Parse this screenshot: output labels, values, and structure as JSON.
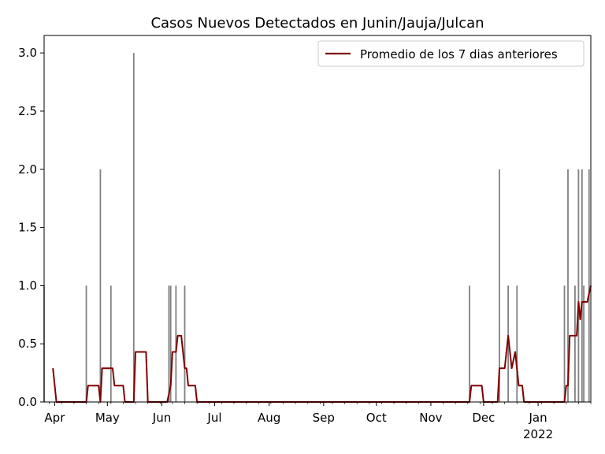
{
  "chart_data": {
    "type": "bar",
    "title": "Casos Nuevos Detectados en Junin/Jauja/Julcan",
    "xlabel": "",
    "ylabel": "",
    "x_range": [
      "2021-03-26",
      "2022-01-31"
    ],
    "ylim": [
      0,
      3.15
    ],
    "y_ticks": [
      0.0,
      0.5,
      1.0,
      1.5,
      2.0,
      2.5,
      3.0
    ],
    "y_tick_labels": [
      "0.0",
      "0.5",
      "1.0",
      "1.5",
      "2.0",
      "2.5",
      "3.0"
    ],
    "x_ticks": [
      {
        "date": "2021-04-01",
        "label": "Apr"
      },
      {
        "date": "2021-05-01",
        "label": "May"
      },
      {
        "date": "2021-06-01",
        "label": "Jun"
      },
      {
        "date": "2021-07-01",
        "label": "Jul"
      },
      {
        "date": "2021-08-01",
        "label": "Aug"
      },
      {
        "date": "2021-09-01",
        "label": "Sep"
      },
      {
        "date": "2021-10-01",
        "label": "Oct"
      },
      {
        "date": "2021-11-01",
        "label": "Nov"
      },
      {
        "date": "2021-12-01",
        "label": "Dec"
      },
      {
        "date": "2022-01-01",
        "label": "Jan",
        "sublabel": "2022"
      }
    ],
    "grid": false,
    "legend_position": "upper right",
    "colors": {
      "bars": "#808080",
      "line": "#800000"
    },
    "bars": [
      {
        "date": "2021-03-26",
        "value": 1
      },
      {
        "date": "2021-04-19",
        "value": 1
      },
      {
        "date": "2021-04-27",
        "value": 2
      },
      {
        "date": "2021-05-03",
        "value": 1
      },
      {
        "date": "2021-05-16",
        "value": 3
      },
      {
        "date": "2021-06-05",
        "value": 1
      },
      {
        "date": "2021-06-06",
        "value": 1
      },
      {
        "date": "2021-06-09",
        "value": 1
      },
      {
        "date": "2021-06-14",
        "value": 1
      },
      {
        "date": "2021-11-23",
        "value": 1
      },
      {
        "date": "2021-12-10",
        "value": 2
      },
      {
        "date": "2021-12-15",
        "value": 1
      },
      {
        "date": "2021-12-20",
        "value": 1
      },
      {
        "date": "2022-01-16",
        "value": 1
      },
      {
        "date": "2022-01-18",
        "value": 2
      },
      {
        "date": "2022-01-22",
        "value": 1
      },
      {
        "date": "2022-01-24",
        "value": 2
      },
      {
        "date": "2022-01-26",
        "value": 2
      },
      {
        "date": "2022-01-27",
        "value": 1
      },
      {
        "date": "2022-01-30",
        "value": 2
      }
    ],
    "series": [
      {
        "name": "Promedio de los 7 dias anteriores",
        "type": "line",
        "points": [
          [
            "2021-03-31",
            0.29
          ],
          [
            "2021-04-02",
            0
          ],
          [
            "2021-04-19",
            0
          ],
          [
            "2021-04-20",
            0.14
          ],
          [
            "2021-04-26",
            0.14
          ],
          [
            "2021-04-27",
            0
          ],
          [
            "2021-04-28",
            0.29
          ],
          [
            "2021-05-04",
            0.29
          ],
          [
            "2021-05-05",
            0.14
          ],
          [
            "2021-05-10",
            0.14
          ],
          [
            "2021-05-11",
            0
          ],
          [
            "2021-05-16",
            0
          ],
          [
            "2021-05-17",
            0.43
          ],
          [
            "2021-05-23",
            0.43
          ],
          [
            "2021-05-24",
            0
          ],
          [
            "2021-06-04",
            0
          ],
          [
            "2021-06-06",
            0.14
          ],
          [
            "2021-06-07",
            0.43
          ],
          [
            "2021-06-09",
            0.43
          ],
          [
            "2021-06-10",
            0.57
          ],
          [
            "2021-06-12",
            0.57
          ],
          [
            "2021-06-14",
            0.29
          ],
          [
            "2021-06-15",
            0.29
          ],
          [
            "2021-06-16",
            0.14
          ],
          [
            "2021-06-20",
            0.14
          ],
          [
            "2021-06-21",
            0
          ],
          [
            "2021-11-23",
            0
          ],
          [
            "2021-11-24",
            0.14
          ],
          [
            "2021-11-30",
            0.14
          ],
          [
            "2021-12-01",
            0
          ],
          [
            "2021-12-09",
            0
          ],
          [
            "2021-12-10",
            0.29
          ],
          [
            "2021-12-13",
            0.29
          ],
          [
            "2021-12-15",
            0.57
          ],
          [
            "2021-12-17",
            0.29
          ],
          [
            "2021-12-19",
            0.43
          ],
          [
            "2021-12-21",
            0.14
          ],
          [
            "2021-12-23",
            0.14
          ],
          [
            "2021-12-24",
            0
          ],
          [
            "2022-01-16",
            0
          ],
          [
            "2022-01-17",
            0.14
          ],
          [
            "2022-01-18",
            0.14
          ],
          [
            "2022-01-19",
            0.57
          ],
          [
            "2022-01-23",
            0.57
          ],
          [
            "2022-01-24",
            0.86
          ],
          [
            "2022-01-25",
            0.71
          ],
          [
            "2022-01-26",
            0.86
          ],
          [
            "2022-01-29",
            0.86
          ],
          [
            "2022-01-31",
            1.0
          ]
        ]
      }
    ]
  }
}
